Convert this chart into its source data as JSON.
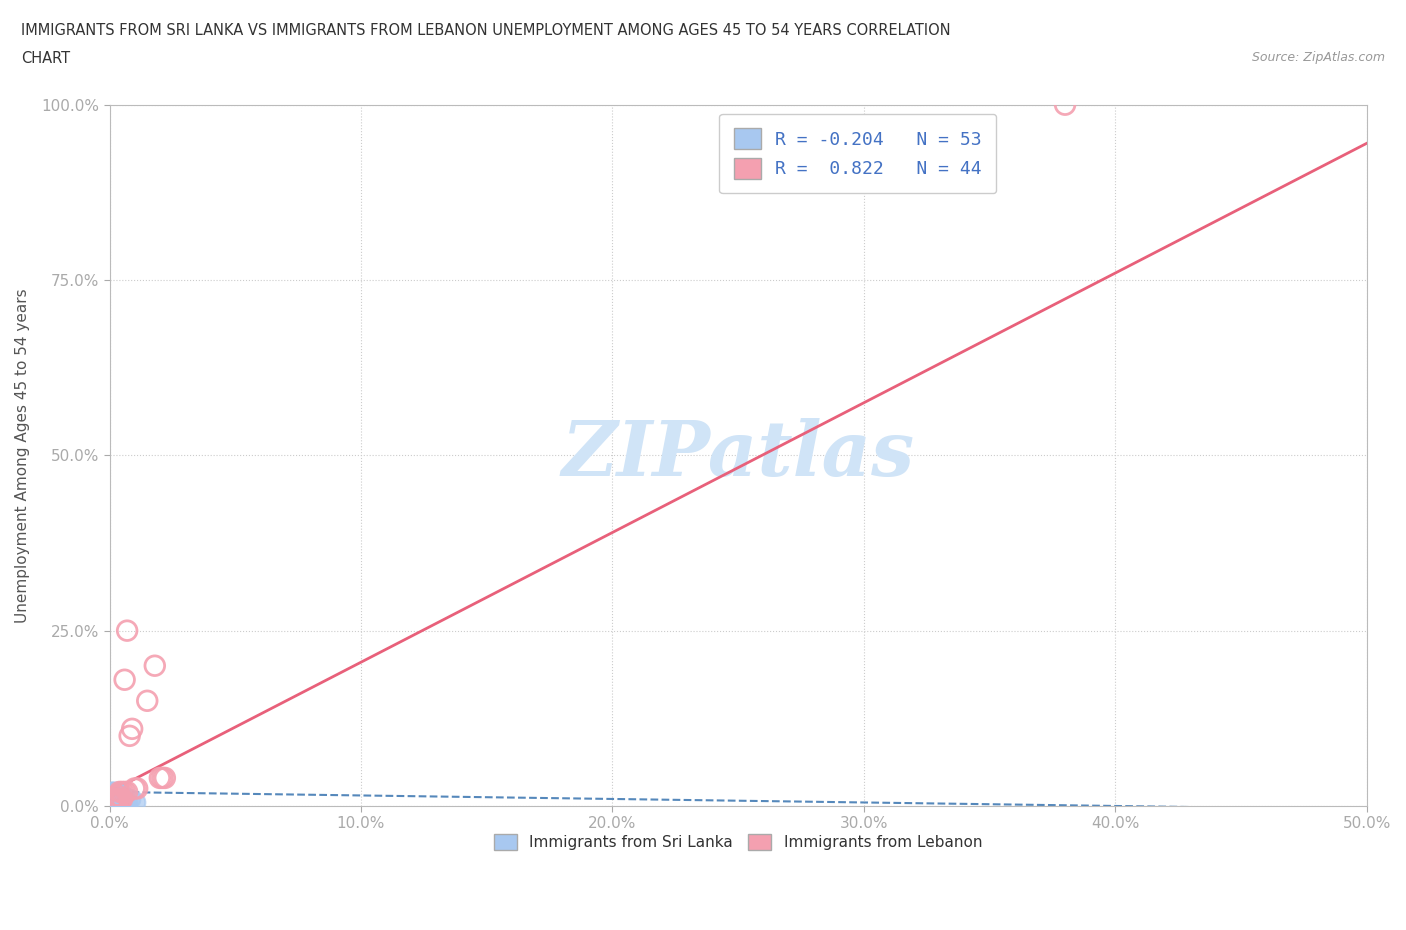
{
  "title_line1": "IMMIGRANTS FROM SRI LANKA VS IMMIGRANTS FROM LEBANON UNEMPLOYMENT AMONG AGES 45 TO 54 YEARS CORRELATION",
  "title_line2": "CHART",
  "source": "Source: ZipAtlas.com",
  "ylabel": "Unemployment Among Ages 45 to 54 years",
  "xlim": [
    0.0,
    0.5
  ],
  "ylim": [
    0.0,
    1.0
  ],
  "xticks": [
    0.0,
    0.1,
    0.2,
    0.3,
    0.4,
    0.5
  ],
  "yticks": [
    0.0,
    0.25,
    0.5,
    0.75,
    1.0
  ],
  "xtick_labels": [
    "0.0%",
    "10.0%",
    "20.0%",
    "30.0%",
    "40.0%",
    "50.0%"
  ],
  "ytick_labels": [
    "0.0%",
    "25.0%",
    "50.0%",
    "75.0%",
    "100.0%"
  ],
  "sri_lanka_color": "#a8c8f0",
  "lebanon_color": "#f4a0b0",
  "sri_lanka_R": -0.204,
  "sri_lanka_N": 53,
  "lebanon_R": 0.822,
  "lebanon_N": 44,
  "sri_lanka_line_color": "#5588bb",
  "lebanon_line_color": "#e8607a",
  "watermark": "ZIPatlas",
  "watermark_color": "#d0e4f7",
  "legend_label_1": "Immigrants from Sri Lanka",
  "legend_label_2": "Immigrants from Lebanon",
  "background_color": "#ffffff",
  "sri_lanka_points": [
    [
      0.001,
      0.005
    ],
    [
      0.002,
      0.01
    ],
    [
      0.001,
      0.02
    ],
    [
      0.003,
      0.01
    ],
    [
      0.002,
      0.005
    ],
    [
      0.001,
      0.01
    ],
    [
      0.003,
      0.02
    ],
    [
      0.002,
      0.01
    ],
    [
      0.001,
      0.005
    ],
    [
      0.004,
      0.01
    ],
    [
      0.002,
      0.005
    ],
    [
      0.001,
      0.01
    ],
    [
      0.003,
      0.015
    ],
    [
      0.002,
      0.005
    ],
    [
      0.001,
      0.02
    ],
    [
      0.004,
      0.01
    ],
    [
      0.002,
      0.005
    ],
    [
      0.003,
      0.01
    ],
    [
      0.001,
      0.005
    ],
    [
      0.002,
      0.02
    ],
    [
      0.001,
      0.005
    ],
    [
      0.003,
      0.01
    ],
    [
      0.002,
      0.005
    ],
    [
      0.001,
      0.015
    ],
    [
      0.004,
      0.005
    ],
    [
      0.002,
      0.01
    ],
    [
      0.001,
      0.005
    ],
    [
      0.003,
      0.015
    ],
    [
      0.002,
      0.005
    ],
    [
      0.001,
      0.01
    ],
    [
      0.005,
      0.005
    ],
    [
      0.002,
      0.015
    ],
    [
      0.001,
      0.005
    ],
    [
      0.003,
      0.01
    ],
    [
      0.002,
      0.005
    ],
    [
      0.001,
      0.02
    ],
    [
      0.004,
      0.005
    ],
    [
      0.002,
      0.01
    ],
    [
      0.003,
      0.005
    ],
    [
      0.001,
      0.015
    ],
    [
      0.006,
      0.005
    ],
    [
      0.002,
      0.01
    ],
    [
      0.001,
      0.005
    ],
    [
      0.003,
      0.015
    ],
    [
      0.007,
      0.005
    ],
    [
      0.002,
      0.01
    ],
    [
      0.004,
      0.005
    ],
    [
      0.001,
      0.01
    ],
    [
      0.003,
      0.005
    ],
    [
      0.008,
      0.01
    ],
    [
      0.002,
      0.005
    ],
    [
      0.01,
      0.005
    ],
    [
      0.005,
      0.015
    ]
  ],
  "lebanon_points": [
    [
      0.001,
      0.005
    ],
    [
      0.002,
      0.01
    ],
    [
      0.001,
      0.005
    ],
    [
      0.002,
      0.005
    ],
    [
      0.001,
      0.01
    ],
    [
      0.003,
      0.005
    ],
    [
      0.002,
      0.005
    ],
    [
      0.001,
      0.01
    ],
    [
      0.002,
      0.005
    ],
    [
      0.003,
      0.01
    ],
    [
      0.001,
      0.005
    ],
    [
      0.002,
      0.005
    ],
    [
      0.001,
      0.005
    ],
    [
      0.002,
      0.01
    ],
    [
      0.003,
      0.005
    ],
    [
      0.001,
      0.005
    ],
    [
      0.002,
      0.005
    ],
    [
      0.003,
      0.01
    ],
    [
      0.004,
      0.005
    ],
    [
      0.001,
      0.005
    ],
    [
      0.002,
      0.005
    ],
    [
      0.001,
      0.01
    ],
    [
      0.003,
      0.005
    ],
    [
      0.002,
      0.005
    ],
    [
      0.001,
      0.005
    ],
    [
      0.003,
      0.005
    ],
    [
      0.005,
      0.02
    ],
    [
      0.006,
      0.02
    ],
    [
      0.007,
      0.02
    ],
    [
      0.01,
      0.025
    ],
    [
      0.011,
      0.025
    ],
    [
      0.02,
      0.04
    ],
    [
      0.021,
      0.04
    ],
    [
      0.022,
      0.04
    ],
    [
      0.015,
      0.15
    ],
    [
      0.018,
      0.2
    ],
    [
      0.008,
      0.1
    ],
    [
      0.009,
      0.11
    ],
    [
      0.007,
      0.25
    ],
    [
      0.006,
      0.18
    ],
    [
      0.38,
      1.0
    ],
    [
      0.004,
      0.02
    ],
    [
      0.005,
      0.01
    ],
    [
      0.003,
      0.015
    ]
  ],
  "lebanon_line_slope": 1.85,
  "lebanon_line_intercept": 0.02,
  "sri_lanka_line_slope": -0.05,
  "sri_lanka_line_intercept": 0.02
}
